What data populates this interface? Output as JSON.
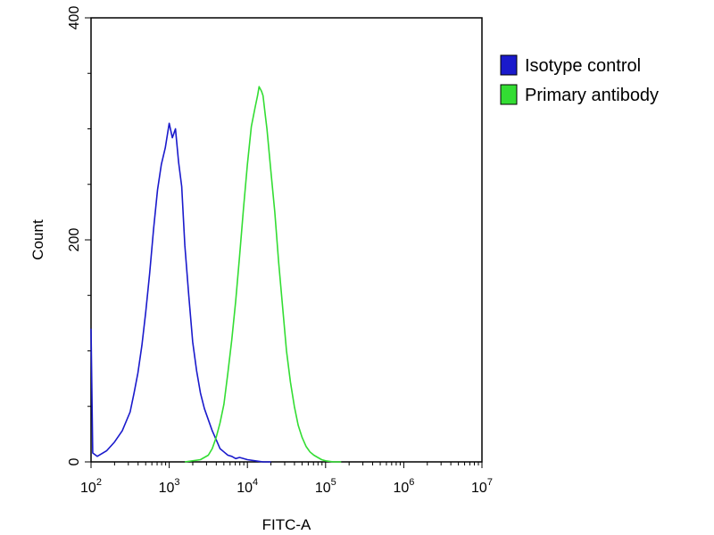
{
  "chart_data": {
    "type": "line",
    "xlabel": "FITC-A",
    "ylabel": "Count",
    "x_scale": "log",
    "xlim": [
      100,
      10000000
    ],
    "ylim": [
      0,
      400
    ],
    "grid": false,
    "legend_position": "right, outside plot, top",
    "x_ticks": [
      {
        "base": "10",
        "exp": "2",
        "value": 100
      },
      {
        "base": "10",
        "exp": "3",
        "value": 1000
      },
      {
        "base": "10",
        "exp": "4",
        "value": 10000
      },
      {
        "base": "10",
        "exp": "5",
        "value": 100000
      },
      {
        "base": "10",
        "exp": "6",
        "value": 1000000
      },
      {
        "base": "10",
        "exp": "7",
        "value": 10000000
      }
    ],
    "y_ticks": [
      {
        "label": "0",
        "value": 0
      },
      {
        "label": "200",
        "value": 200
      },
      {
        "label": "400",
        "value": 400
      }
    ],
    "series": [
      {
        "name": "Isotype control",
        "color": "#1a1acc",
        "x": [
          100,
          105,
          120,
          158,
          200,
          251,
          316,
          355,
          398,
          447,
          501,
          562,
          631,
          708,
          794,
          891,
          1000,
          1096,
          1202,
          1318,
          1445,
          1585,
          1778,
          1995,
          2239,
          2512,
          2818,
          3162,
          3548,
          3981,
          4467,
          5012,
          5623,
          6310,
          7079,
          7943,
          10000,
          12589,
          15849,
          19953
        ],
        "values": [
          120,
          8,
          5,
          10,
          18,
          28,
          45,
          62,
          80,
          105,
          135,
          170,
          210,
          245,
          268,
          283,
          305,
          292,
          300,
          270,
          248,
          195,
          150,
          108,
          82,
          62,
          48,
          38,
          28,
          20,
          12,
          9,
          6,
          5,
          3,
          4,
          2,
          1,
          0,
          0
        ]
      },
      {
        "name": "Primary antibody",
        "color": "#33dd33",
        "x": [
          1585,
          2512,
          3162,
          3548,
          3981,
          4467,
          5012,
          5623,
          6310,
          7079,
          7943,
          8913,
          10000,
          11220,
          12589,
          13490,
          14125,
          15136,
          15849,
          16982,
          17783,
          19953,
          22387,
          25119,
          28184,
          31623,
          35481,
          39811,
          44668,
          50119,
          56234,
          63096,
          70795,
          79433,
          89125,
          100000,
          125893,
          158489
        ],
        "values": [
          0,
          2,
          6,
          12,
          22,
          35,
          52,
          80,
          110,
          145,
          185,
          228,
          268,
          302,
          320,
          330,
          338,
          334,
          330,
          312,
          300,
          262,
          225,
          180,
          140,
          100,
          72,
          50,
          33,
          22,
          14,
          9,
          6,
          4,
          2,
          1,
          0,
          0
        ]
      }
    ]
  }
}
